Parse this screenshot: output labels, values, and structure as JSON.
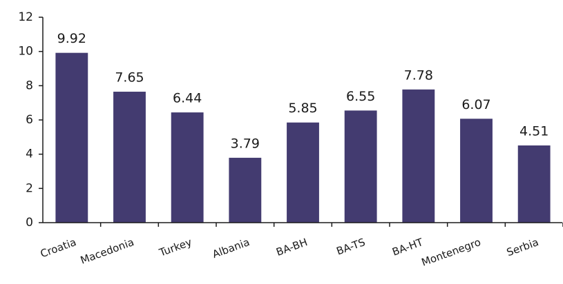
{
  "chart_data": {
    "type": "bar",
    "categories": [
      "Croatia",
      "Macedonia",
      "Turkey",
      "Albania",
      "BA-BH",
      "BA-TS",
      "BA-HT",
      "Montenegro",
      "Serbia"
    ],
    "values": [
      9.92,
      7.65,
      6.44,
      3.79,
      5.85,
      6.55,
      7.78,
      6.07,
      4.51
    ],
    "color": "#433b70",
    "ylim": [
      0,
      12
    ],
    "yticks": [
      0,
      2,
      4,
      6,
      8,
      10,
      12
    ],
    "grid": false
  }
}
